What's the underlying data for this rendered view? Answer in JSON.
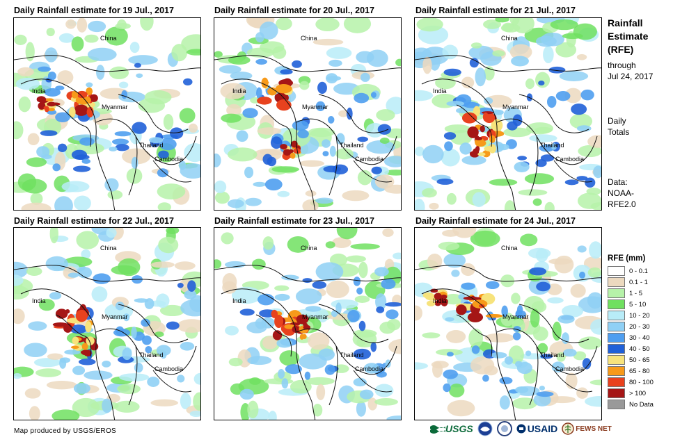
{
  "panels": [
    {
      "title": "Daily Rainfall estimate for 19 Jul., 2017"
    },
    {
      "title": "Daily Rainfall estimate for 20 Jul., 2017"
    },
    {
      "title": "Daily Rainfall estimate for 21 Jul., 2017"
    },
    {
      "title": "Daily Rainfall estimate for 22 Jul., 2017"
    },
    {
      "title": "Daily Rainfall estimate for 23 Jul., 2017"
    },
    {
      "title": "Daily Rainfall estimate for 24 Jul., 2017"
    }
  ],
  "map_labels": {
    "china": "China",
    "india": "India",
    "myanmar": "Myanmar",
    "thailand": "Thailand",
    "cambodia": "Cambodia"
  },
  "sidebar": {
    "heading_line1": "Rainfall",
    "heading_line2": "Estimate",
    "heading_line3": "(RFE)",
    "through": "through",
    "date": "Jul 24, 2017",
    "daily": "Daily",
    "totals": "Totals",
    "data": "Data:",
    "source1": "NOAA-",
    "source2": "RFE2.0"
  },
  "legend": {
    "title": "RFE (mm)",
    "items": [
      {
        "label": "0 - 0.1",
        "color": "#ffffff"
      },
      {
        "label": "0.1 - 1",
        "color": "#ecd9bf"
      },
      {
        "label": "1 - 5",
        "color": "#b6f2a9"
      },
      {
        "label": "5 - 10",
        "color": "#70e060"
      },
      {
        "label": "10 - 20",
        "color": "#b8ecf8"
      },
      {
        "label": "20 - 30",
        "color": "#8fd0f5"
      },
      {
        "label": "30 - 40",
        "color": "#4f9ef0"
      },
      {
        "label": "40 - 50",
        "color": "#2060d8"
      },
      {
        "label": "50 - 65",
        "color": "#f7e37c"
      },
      {
        "label": "65 - 80",
        "color": "#f79a1a"
      },
      {
        "label": "80 - 100",
        "color": "#e8421e"
      },
      {
        "label": "> 100",
        "color": "#a51616"
      },
      {
        "label": "No Data",
        "color": "#999999"
      }
    ]
  },
  "footer": {
    "credit": "Map produced by USGS/EROS"
  },
  "logos": {
    "usgs": "USGS",
    "usaid": "USAID",
    "fewsnet": "FEWS NET"
  }
}
